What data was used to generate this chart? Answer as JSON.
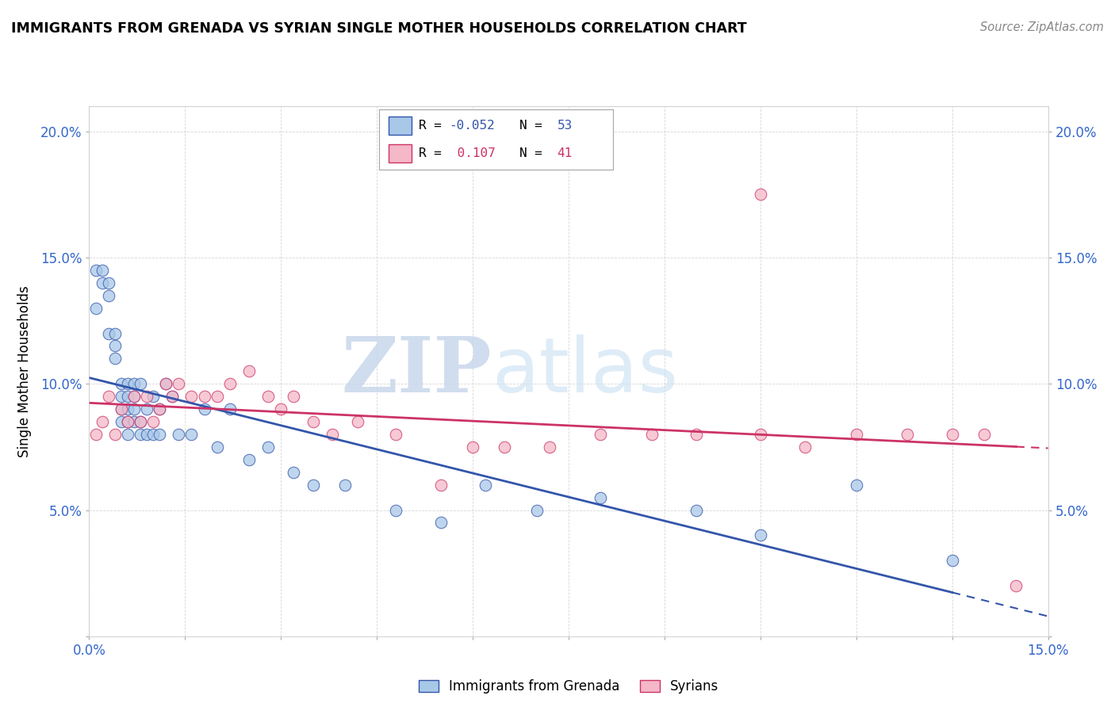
{
  "title": "IMMIGRANTS FROM GRENADA VS SYRIAN SINGLE MOTHER HOUSEHOLDS CORRELATION CHART",
  "source": "Source: ZipAtlas.com",
  "ylabel_label": "Single Mother Households",
  "xlim": [
    0.0,
    0.15
  ],
  "ylim": [
    0.0,
    0.21
  ],
  "xticks": [
    0.0,
    0.015,
    0.03,
    0.045,
    0.06,
    0.075,
    0.09,
    0.105,
    0.12,
    0.135,
    0.15
  ],
  "yticks": [
    0.0,
    0.05,
    0.1,
    0.15,
    0.2
  ],
  "xtick_labels": [
    "0.0%",
    "",
    "",
    "",
    "",
    "",
    "",
    "",
    "",
    "",
    "15.0%"
  ],
  "ytick_labels": [
    "",
    "5.0%",
    "10.0%",
    "15.0%",
    "20.0%"
  ],
  "color_blue": "#a8c8e8",
  "color_pink": "#f4b8c8",
  "line_blue": "#3355aa",
  "line_pink": "#cc3366",
  "watermark_zip": "ZIP",
  "watermark_atlas": "atlas",
  "blue_x": [
    0.001,
    0.001,
    0.002,
    0.002,
    0.003,
    0.003,
    0.003,
    0.004,
    0.004,
    0.004,
    0.005,
    0.005,
    0.005,
    0.005,
    0.006,
    0.006,
    0.006,
    0.006,
    0.006,
    0.007,
    0.007,
    0.007,
    0.007,
    0.008,
    0.008,
    0.008,
    0.009,
    0.009,
    0.01,
    0.01,
    0.011,
    0.011,
    0.012,
    0.013,
    0.014,
    0.016,
    0.018,
    0.02,
    0.022,
    0.025,
    0.028,
    0.032,
    0.035,
    0.04,
    0.048,
    0.055,
    0.062,
    0.07,
    0.08,
    0.095,
    0.105,
    0.12,
    0.135
  ],
  "blue_y": [
    0.145,
    0.13,
    0.14,
    0.145,
    0.14,
    0.135,
    0.12,
    0.12,
    0.115,
    0.11,
    0.1,
    0.095,
    0.09,
    0.085,
    0.1,
    0.095,
    0.09,
    0.085,
    0.08,
    0.1,
    0.095,
    0.09,
    0.085,
    0.1,
    0.085,
    0.08,
    0.09,
    0.08,
    0.095,
    0.08,
    0.09,
    0.08,
    0.1,
    0.095,
    0.08,
    0.08,
    0.09,
    0.075,
    0.09,
    0.07,
    0.075,
    0.065,
    0.06,
    0.06,
    0.05,
    0.045,
    0.06,
    0.05,
    0.055,
    0.05,
    0.04,
    0.06,
    0.03
  ],
  "pink_x": [
    0.001,
    0.002,
    0.003,
    0.004,
    0.005,
    0.006,
    0.007,
    0.008,
    0.009,
    0.01,
    0.011,
    0.012,
    0.013,
    0.014,
    0.016,
    0.018,
    0.02,
    0.022,
    0.025,
    0.028,
    0.03,
    0.032,
    0.035,
    0.038,
    0.042,
    0.048,
    0.055,
    0.06,
    0.065,
    0.072,
    0.08,
    0.088,
    0.095,
    0.105,
    0.112,
    0.12,
    0.128,
    0.135,
    0.14,
    0.145,
    0.105
  ],
  "pink_y": [
    0.08,
    0.085,
    0.095,
    0.08,
    0.09,
    0.085,
    0.095,
    0.085,
    0.095,
    0.085,
    0.09,
    0.1,
    0.095,
    0.1,
    0.095,
    0.095,
    0.095,
    0.1,
    0.105,
    0.095,
    0.09,
    0.095,
    0.085,
    0.08,
    0.085,
    0.08,
    0.06,
    0.075,
    0.075,
    0.075,
    0.08,
    0.08,
    0.08,
    0.08,
    0.075,
    0.08,
    0.08,
    0.08,
    0.08,
    0.02,
    0.175
  ]
}
